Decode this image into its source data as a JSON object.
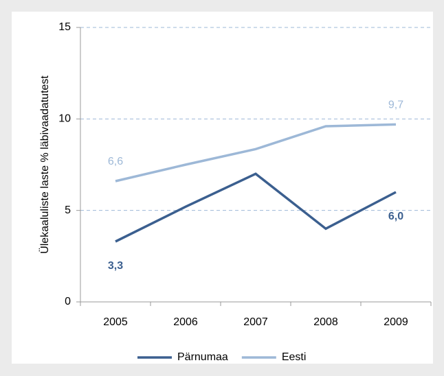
{
  "chart_data": {
    "type": "line",
    "y_label": "Ülekaaluliste laste % läbivaadatutest",
    "categories": [
      "2005",
      "2006",
      "2007",
      "2008",
      "2009"
    ],
    "series": [
      {
        "name": "Pärnumaa",
        "color": "#3b5f8f",
        "values": [
          3.3,
          5.2,
          7.0,
          4.0,
          6.0
        ],
        "value_labels": [
          "3,3",
          null,
          null,
          null,
          "6,0"
        ]
      },
      {
        "name": "Eesti",
        "color": "#9db8d7",
        "values": [
          6.6,
          7.5,
          8.35,
          9.6,
          9.7
        ],
        "value_labels": [
          "6,6",
          null,
          null,
          null,
          "9,7"
        ]
      }
    ],
    "ylim": [
      0,
      15
    ],
    "yticks": [
      0,
      5,
      10,
      15
    ],
    "grid": true,
    "legend": "bottom"
  }
}
